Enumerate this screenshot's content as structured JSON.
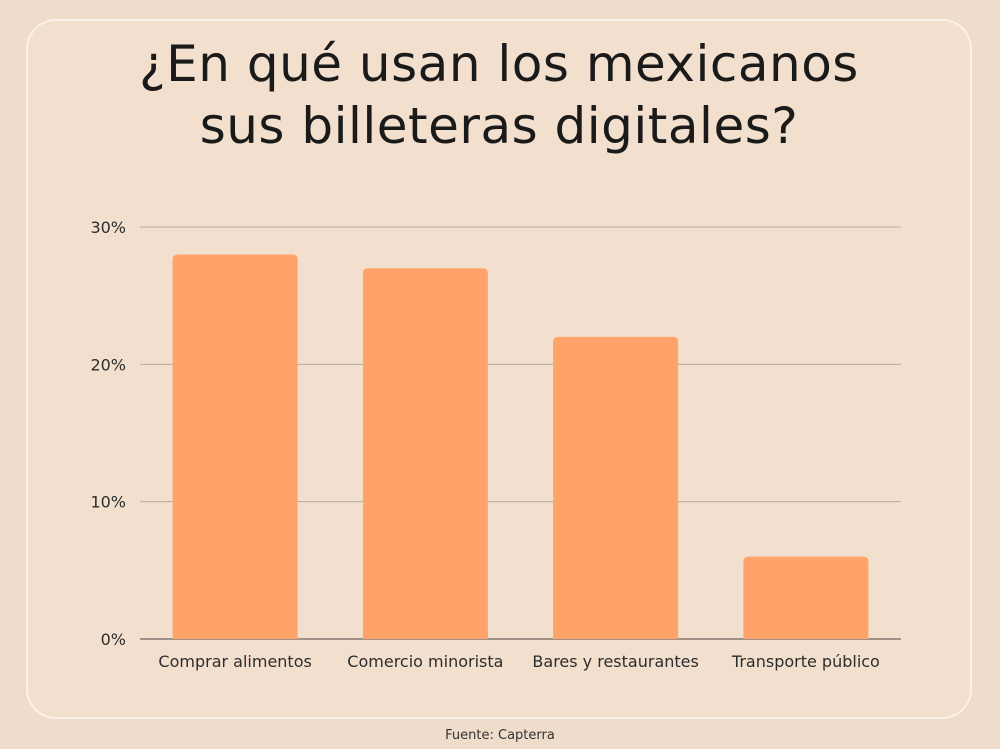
{
  "title_lines": [
    "¿En qué usan los mexicanos",
    "sus billeteras digitales?"
  ],
  "source": "Fuente: Capterra",
  "colors": {
    "background": "#f0dccb",
    "bar": "#ffa36a",
    "gridline": "#b9ab9e",
    "text": "#1a1a1a"
  },
  "chart_data": {
    "type": "bar",
    "title": "¿En qué usan los mexicanos sus billeteras digitales?",
    "categories": [
      "Comprar alimentos",
      "Comercio minorista",
      "Bares y restaurantes",
      "Transporte público"
    ],
    "values": [
      28,
      27,
      22,
      6
    ],
    "yticks": [
      "0%",
      "10%",
      "20%",
      "30%"
    ],
    "ylim": [
      0,
      30
    ],
    "grid": true,
    "xlabel": "",
    "ylabel": ""
  }
}
